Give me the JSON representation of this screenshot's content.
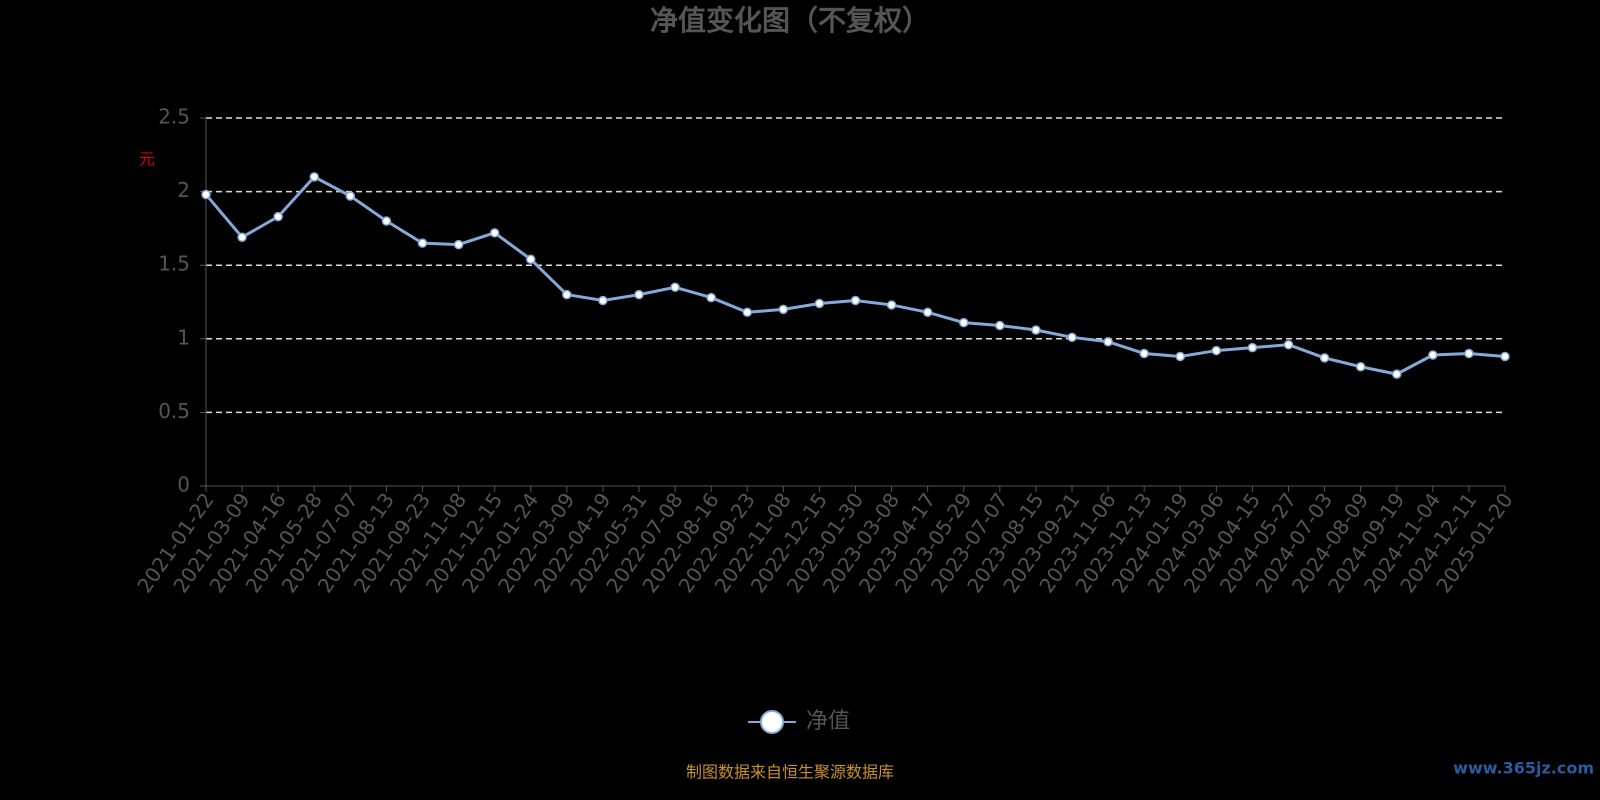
{
  "chart_data": {
    "type": "line",
    "title": "净值变化图（不复权）",
    "y_axis_label": "元",
    "categories": [
      "2021-01-22",
      "2021-03-09",
      "2021-04-16",
      "2021-05-28",
      "2021-07-07",
      "2021-08-13",
      "2021-09-23",
      "2021-11-08",
      "2021-12-15",
      "2022-01-24",
      "2022-03-09",
      "2022-04-19",
      "2022-05-31",
      "2022-07-08",
      "2022-08-16",
      "2022-09-23",
      "2022-11-08",
      "2022-12-15",
      "2023-01-30",
      "2023-03-08",
      "2023-04-17",
      "2023-05-29",
      "2023-07-07",
      "2023-08-15",
      "2023-09-21",
      "2023-11-06",
      "2023-12-13",
      "2024-01-19",
      "2024-03-06",
      "2024-04-15",
      "2024-05-27",
      "2024-07-03",
      "2024-08-09",
      "2024-09-19",
      "2024-11-04",
      "2024-12-11",
      "2025-01-20"
    ],
    "series": [
      {
        "name": "净值",
        "color": "#85a9d8",
        "values": [
          1.98,
          1.69,
          1.83,
          2.1,
          1.97,
          1.8,
          1.65,
          1.64,
          1.72,
          1.54,
          1.3,
          1.26,
          1.3,
          1.35,
          1.28,
          1.18,
          1.2,
          1.24,
          1.26,
          1.23,
          1.18,
          1.11,
          1.09,
          1.06,
          1.01,
          0.98,
          0.9,
          0.88,
          0.92,
          0.94,
          0.96,
          0.87,
          0.81,
          0.76,
          0.89,
          0.9,
          0.88
        ]
      }
    ],
    "ylim": [
      0,
      2.5
    ],
    "yticks": [
      0,
      0.5,
      1,
      1.5,
      2,
      2.5
    ],
    "grid": true,
    "legend": "bottom",
    "source_note": "制图数据来自恒生聚源数据库",
    "watermark": "www.365jz.com"
  }
}
